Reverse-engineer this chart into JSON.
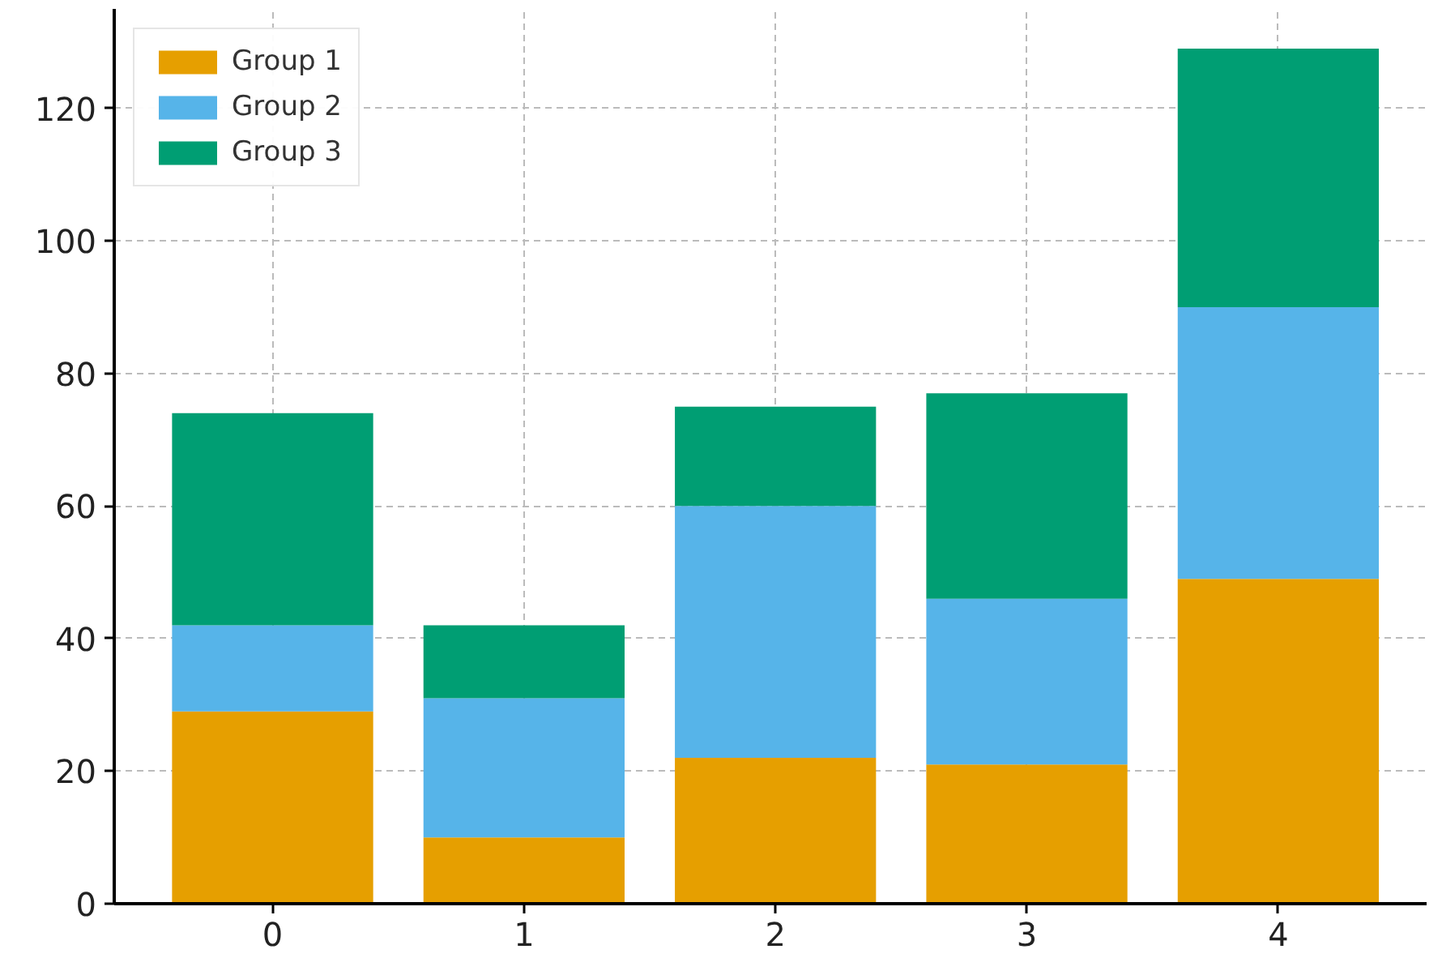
{
  "chart_data": {
    "type": "bar",
    "stacked": true,
    "x": [
      0,
      1,
      2,
      3,
      4
    ],
    "series": [
      {
        "name": "Group 1",
        "color": "#e69f00",
        "values": [
          29,
          10,
          22,
          21,
          49
        ]
      },
      {
        "name": "Group 2",
        "color": "#56b4e9",
        "values": [
          13,
          21,
          38,
          25,
          41
        ]
      },
      {
        "name": "Group 3",
        "color": "#009e73",
        "values": [
          32,
          11,
          15,
          31,
          39
        ]
      }
    ],
    "xlim": [
      -0.63,
      4.59
    ],
    "xticks": [
      0,
      1,
      2,
      3,
      4
    ],
    "ylim": [
      0,
      135
    ],
    "yticks": [
      0,
      20,
      40,
      60,
      80,
      100,
      120
    ],
    "grid": true,
    "legend": "top left"
  }
}
